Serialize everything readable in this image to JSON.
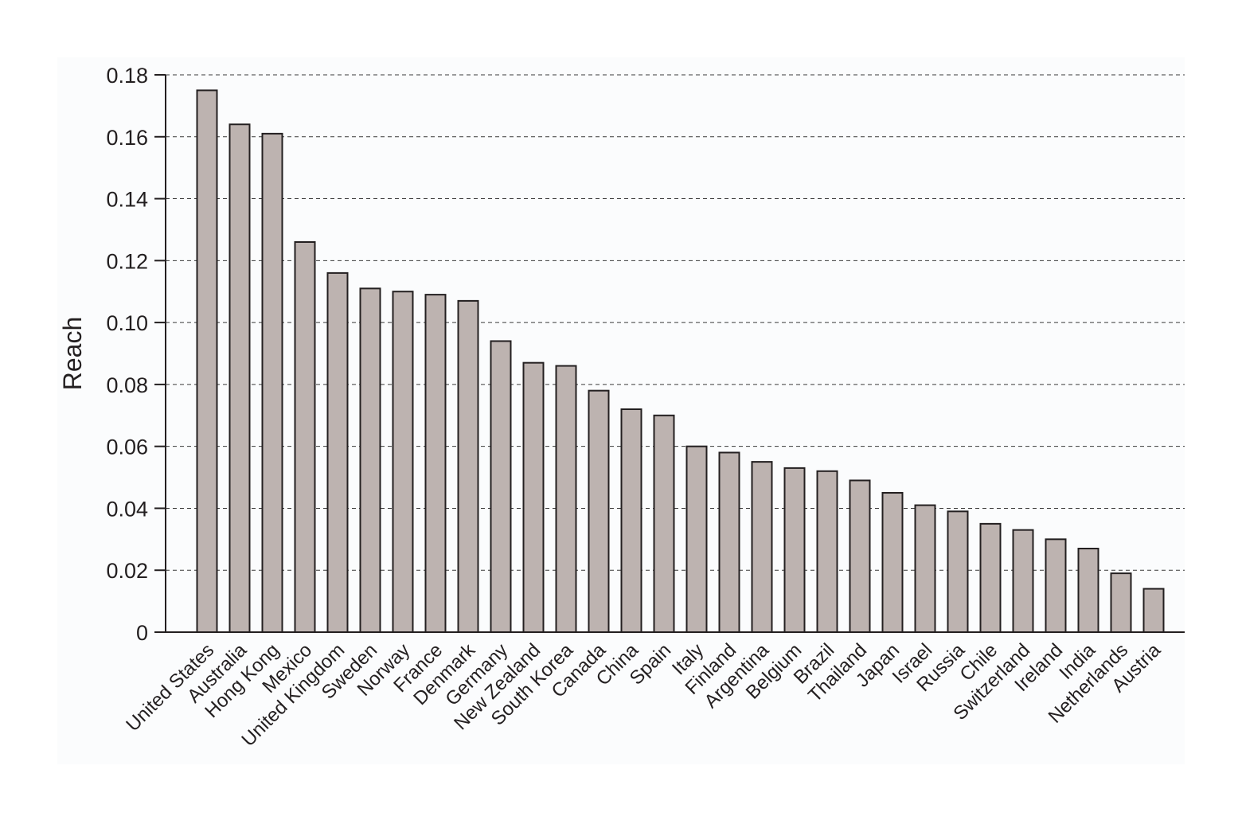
{
  "chart_data": {
    "type": "bar",
    "title": "",
    "xlabel": "",
    "ylabel": "Reach",
    "ylim": [
      0,
      0.18
    ],
    "yticks": [
      0,
      0.02,
      0.04,
      0.06,
      0.08,
      0.1,
      0.12,
      0.14,
      0.16,
      0.18
    ],
    "ytick_labels": [
      "0",
      "0.02",
      "0.04",
      "0.06",
      "0.08",
      "0.10",
      "0.12",
      "0.14",
      "0.16",
      "0.18"
    ],
    "grid": "horizontal dashed",
    "legend": "none",
    "categories": [
      "United States",
      "Australia",
      "Hong Kong",
      "Mexico",
      "United Kingdom",
      "Sweden",
      "Norway",
      "France",
      "Denmark",
      "Germany",
      "New Zealand",
      "South Korea",
      "Canada",
      "China",
      "Spain",
      "Italy",
      "Finland",
      "Argentina",
      "Belgium",
      "Brazil",
      "Thailand",
      "Japan",
      "Israel",
      "Russia",
      "Chile",
      "Switzerland",
      "Ireland",
      "India",
      "Netherlands",
      "Austria"
    ],
    "values": [
      0.175,
      0.164,
      0.161,
      0.126,
      0.116,
      0.111,
      0.11,
      0.109,
      0.107,
      0.094,
      0.087,
      0.086,
      0.078,
      0.072,
      0.07,
      0.06,
      0.058,
      0.055,
      0.053,
      0.052,
      0.049,
      0.045,
      0.041,
      0.039,
      0.035,
      0.033,
      0.03,
      0.027,
      0.019,
      0.014
    ],
    "colors": {
      "bar_fill": "#bdb3b0",
      "bar_stroke": "#231f20",
      "axis": "#231f20",
      "grid": "#3a3a3a",
      "plot_background": "#fbfcfd"
    }
  }
}
